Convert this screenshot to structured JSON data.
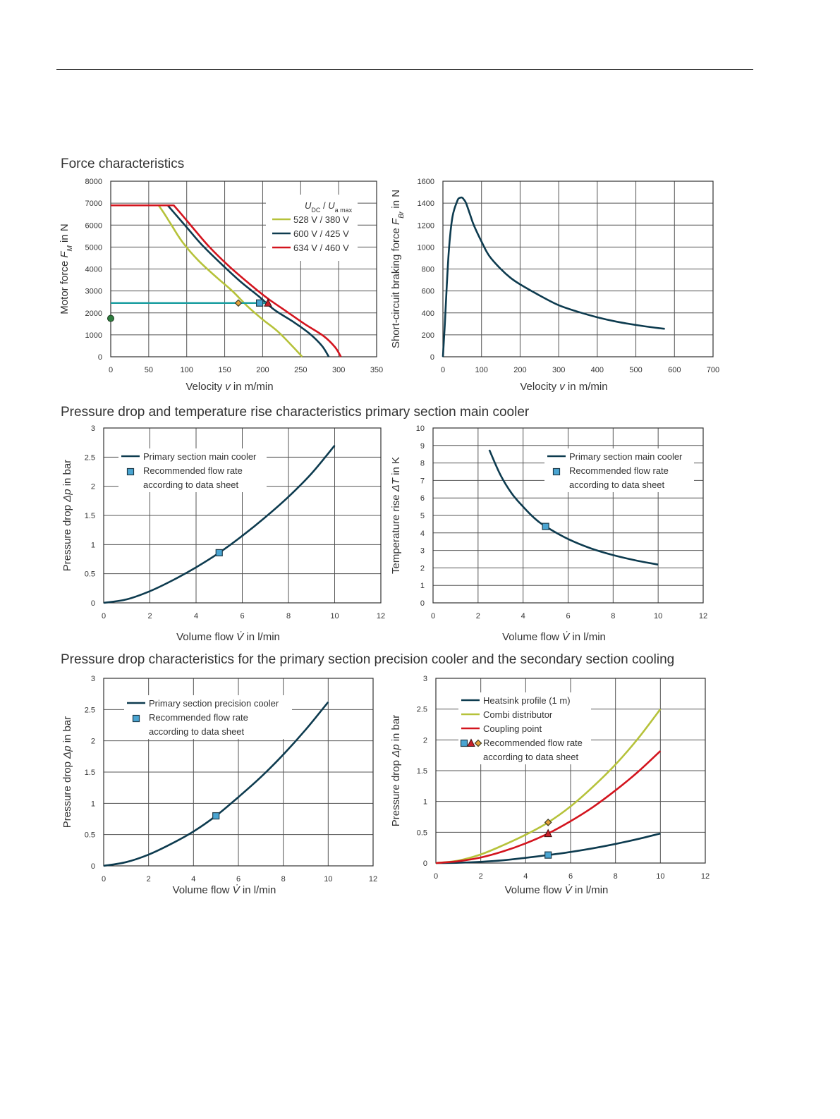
{
  "sections": {
    "force": "Force characteristics",
    "primary_main": "Pressure drop and temperature rise characteristics primary section main cooler",
    "precision_secondary": "Pressure drop characteristics for the primary section precision cooler and the secondary section cooling"
  },
  "colors": {
    "navy": "#0d3b4f",
    "green": "#b6c23a",
    "red": "#d3141e",
    "teal": "#1a9ea0",
    "marker_blue": "#4aa5d2",
    "marker_red": "#c8202a",
    "marker_orange": "#e3a23c",
    "dot_green": "#2e7d3e"
  },
  "chart_data": [
    {
      "id": "motor-force",
      "type": "line",
      "ylabel": "Motor force F_M in N",
      "xlabel": "Velocity v in m/min",
      "xlim": [
        0,
        350
      ],
      "ylim": [
        0,
        8000
      ],
      "xticks": [
        0,
        50,
        100,
        150,
        200,
        250,
        300,
        350
      ],
      "yticks": [
        0,
        1000,
        2000,
        3000,
        4000,
        5000,
        6000,
        7000,
        8000
      ],
      "legend_title": "U_DC / U_a max",
      "grid": true,
      "legend_position": "top-right",
      "series": [
        {
          "name": "528 V / 380 V",
          "color": "green",
          "x": [
            0,
            63,
            70,
            80,
            95,
            115,
            140,
            160,
            180,
            200,
            220,
            240,
            252
          ],
          "y": [
            6900,
            6900,
            6550,
            6000,
            5200,
            4400,
            3600,
            3000,
            2300,
            1700,
            1150,
            450,
            0
          ]
        },
        {
          "name": "600 V / 425 V",
          "color": "navy",
          "x": [
            0,
            75,
            85,
            100,
            120,
            145,
            170,
            195,
            215,
            240,
            262,
            278,
            287
          ],
          "y": [
            6900,
            6900,
            6500,
            5900,
            5100,
            4250,
            3450,
            2750,
            2150,
            1600,
            1050,
            500,
            0
          ]
        },
        {
          "name": "634 V / 460 V",
          "color": "red",
          "x": [
            0,
            83,
            93,
            110,
            130,
            155,
            180,
            205,
            230,
            255,
            280,
            295,
            303
          ],
          "y": [
            6900,
            6900,
            6500,
            5800,
            5000,
            4150,
            3400,
            2700,
            2100,
            1500,
            950,
            450,
            0
          ]
        }
      ],
      "reference": {
        "x": [
          0,
          207
        ],
        "y": [
          2450,
          2450
        ],
        "color": "teal"
      },
      "markers": [
        {
          "x": 168,
          "y": 2450,
          "shape": "diamond",
          "color": "marker_orange"
        },
        {
          "x": 196,
          "y": 2450,
          "shape": "square",
          "color": "marker_blue"
        },
        {
          "x": 207,
          "y": 2450,
          "shape": "triangle",
          "color": "marker_red"
        },
        {
          "x": 0,
          "y": 1750,
          "shape": "circle",
          "color": "dot_green"
        }
      ]
    },
    {
      "id": "braking-force",
      "type": "line",
      "ylabel": "Short-circuit braking force F_Br in N",
      "xlabel": "Velocity v in m/min",
      "xlim": [
        0,
        700
      ],
      "ylim": [
        0,
        1600
      ],
      "xticks": [
        0,
        100,
        200,
        300,
        400,
        500,
        600,
        700
      ],
      "yticks": [
        0,
        200,
        400,
        600,
        800,
        1000,
        1200,
        1400,
        1600
      ],
      "grid": true,
      "series": [
        {
          "name": "",
          "color": "navy",
          "x": [
            0,
            5,
            10,
            15,
            20,
            25,
            30,
            35,
            40,
            45,
            50,
            55,
            60,
            70,
            80,
            100,
            120,
            150,
            175,
            200,
            250,
            300,
            350,
            400,
            450,
            500,
            550,
            575
          ],
          "y": [
            0,
            300,
            650,
            950,
            1150,
            1280,
            1350,
            1400,
            1440,
            1450,
            1450,
            1430,
            1400,
            1300,
            1200,
            1050,
            920,
            800,
            720,
            660,
            560,
            470,
            410,
            360,
            320,
            290,
            265,
            255
          ]
        }
      ]
    },
    {
      "id": "main-cooler-pressure",
      "type": "line",
      "ylabel": "Pressure drop Δp in bar",
      "xlabel": "Volume flow V̇ in l/min",
      "xlim": [
        0,
        12
      ],
      "ylim": [
        0,
        3
      ],
      "xticks": [
        0,
        2,
        4,
        6,
        8,
        10,
        12
      ],
      "yticks": [
        0,
        0.5,
        1,
        1.5,
        2,
        2.5,
        3
      ],
      "ytick_labels": [
        "0",
        "0.5",
        "1",
        "1.5",
        "2",
        "2.5",
        "3"
      ],
      "grid": true,
      "legend_position": "top-left",
      "legend": [
        "Primary section main cooler",
        "Recommended flow rate",
        "according to data sheet"
      ],
      "series": [
        {
          "name": "Primary section main cooler",
          "color": "navy",
          "x": [
            0,
            1,
            2,
            3,
            4,
            5,
            6,
            7,
            8,
            9,
            10
          ],
          "y": [
            0,
            0.06,
            0.2,
            0.39,
            0.61,
            0.86,
            1.15,
            1.47,
            1.82,
            2.22,
            2.7
          ]
        }
      ],
      "markers": [
        {
          "x": 5,
          "y": 0.86,
          "shape": "square",
          "color": "marker_blue"
        }
      ]
    },
    {
      "id": "main-cooler-temperature",
      "type": "line",
      "ylabel": "Temperature rise ΔT in K",
      "xlabel": "Volume flow V̇ in l/min",
      "xlim": [
        0,
        12
      ],
      "ylim": [
        0,
        10
      ],
      "xticks": [
        0,
        2,
        4,
        6,
        8,
        10,
        12
      ],
      "yticks": [
        0,
        1,
        2,
        3,
        4,
        5,
        6,
        7,
        8,
        9,
        10
      ],
      "grid": true,
      "legend_position": "top-right",
      "legend": [
        "Primary section main cooler",
        "Recommended flow rate",
        "according to data sheet"
      ],
      "series": [
        {
          "name": "Primary section main cooler",
          "color": "navy",
          "x": [
            2.5,
            3,
            3.5,
            4,
            4.5,
            5,
            6,
            7,
            8,
            9,
            10
          ],
          "y": [
            8.75,
            7.3,
            6.25,
            5.5,
            4.85,
            4.37,
            3.65,
            3.12,
            2.73,
            2.43,
            2.19
          ]
        }
      ],
      "markers": [
        {
          "x": 5,
          "y": 4.37,
          "shape": "square",
          "color": "marker_blue"
        }
      ]
    },
    {
      "id": "precision-cooler-pressure",
      "type": "line",
      "ylabel": "Pressure drop Δp in bar",
      "xlabel": "Volume flow V̇ in l/min",
      "xlim": [
        0,
        12
      ],
      "ylim": [
        0,
        3
      ],
      "xticks": [
        0,
        2,
        4,
        6,
        8,
        10,
        12
      ],
      "yticks": [
        0,
        0.5,
        1,
        1.5,
        2,
        2.5,
        3
      ],
      "ytick_labels": [
        "0",
        "0.5",
        "1",
        "1.5",
        "2",
        "2.5",
        "3"
      ],
      "grid": true,
      "legend_position": "top-left",
      "legend": [
        "Primary section precision cooler",
        "Recommended flow rate",
        "according to data sheet"
      ],
      "series": [
        {
          "name": "Primary section precision cooler",
          "color": "navy",
          "x": [
            0,
            1,
            2,
            3,
            4,
            5,
            6,
            7,
            8,
            9,
            10
          ],
          "y": [
            0,
            0.06,
            0.18,
            0.35,
            0.55,
            0.8,
            1.1,
            1.42,
            1.78,
            2.18,
            2.62
          ]
        }
      ],
      "markers": [
        {
          "x": 5,
          "y": 0.8,
          "shape": "square",
          "color": "marker_blue"
        }
      ]
    },
    {
      "id": "secondary-pressure",
      "type": "line",
      "ylabel": "Pressure drop Δp in bar",
      "xlabel": "Volume flow V̇ in l/min",
      "xlim": [
        0,
        12
      ],
      "ylim": [
        0,
        3
      ],
      "xticks": [
        0,
        2,
        4,
        6,
        8,
        10,
        12
      ],
      "yticks": [
        0,
        0.5,
        1,
        1.5,
        2,
        2.5,
        3
      ],
      "ytick_labels": [
        "0",
        "0.5",
        "1",
        "1.5",
        "2",
        "2.5",
        "3"
      ],
      "grid": true,
      "legend_position": "top-left",
      "legend": [
        "Heatsink profile (1 m)",
        "Combi distributor",
        "Coupling point",
        "Recommended flow rate",
        "according to data sheet"
      ],
      "series": [
        {
          "name": "Heatsink profile (1 m)",
          "color": "navy",
          "x": [
            0,
            1,
            2,
            3,
            4,
            5,
            6,
            7,
            8,
            9,
            10
          ],
          "y": [
            0,
            0.005,
            0.02,
            0.045,
            0.085,
            0.13,
            0.18,
            0.24,
            0.31,
            0.39,
            0.48
          ]
        },
        {
          "name": "Combi distributor",
          "color": "green",
          "x": [
            0,
            1,
            2,
            3,
            4,
            5,
            6,
            7,
            8,
            9,
            10
          ],
          "y": [
            0,
            0.04,
            0.14,
            0.29,
            0.46,
            0.66,
            0.92,
            1.24,
            1.6,
            2.02,
            2.5
          ]
        },
        {
          "name": "Coupling point",
          "color": "red",
          "x": [
            0,
            1,
            2,
            3,
            4,
            5,
            6,
            7,
            8,
            9,
            10
          ],
          "y": [
            0,
            0.03,
            0.09,
            0.19,
            0.32,
            0.48,
            0.68,
            0.91,
            1.18,
            1.48,
            1.82
          ]
        }
      ],
      "markers": [
        {
          "x": 5,
          "y": 0.66,
          "shape": "diamond",
          "color": "marker_orange"
        },
        {
          "x": 5,
          "y": 0.48,
          "shape": "triangle",
          "color": "marker_red"
        },
        {
          "x": 5,
          "y": 0.13,
          "shape": "square",
          "color": "marker_blue"
        }
      ]
    }
  ]
}
